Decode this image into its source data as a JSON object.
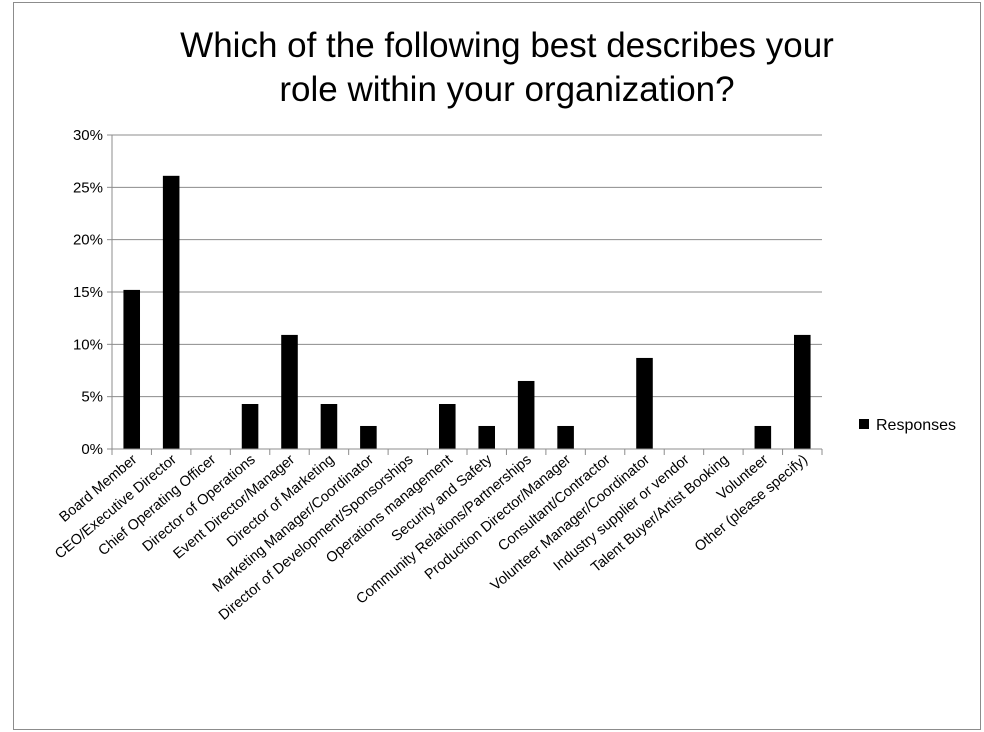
{
  "chart_data": {
    "type": "bar",
    "title_lines": [
      "Which of the following best describes your",
      "role within your organization?"
    ],
    "categories": [
      "Board Member",
      "CEO/Executive Director",
      "Chief Operating Officer",
      "Director of Operations",
      "Event Director/Manager",
      "Director of Marketing",
      "Marketing Manager/Coordinator",
      "Director of Development/Sponsorships",
      "Operations management",
      "Security and Safety",
      "Community Relations/Partnerships",
      "Production Director/Manager",
      "Consultant/Contractor",
      "Volunteer Manager/Coordinator",
      "Industry supplier or vendor",
      "Talent Buyer/Artist Booking",
      "Volunteer",
      "Other (please specify)"
    ],
    "series": [
      {
        "name": "Responses",
        "values": [
          15.2,
          26.1,
          0,
          4.3,
          10.9,
          4.3,
          2.2,
          0,
          4.3,
          2.2,
          6.5,
          2.2,
          0,
          8.7,
          0,
          0,
          2.2,
          10.9
        ]
      }
    ],
    "ylim": [
      0,
      30
    ],
    "yticks": [
      0,
      5,
      10,
      15,
      20,
      25,
      30
    ],
    "ytick_labels": [
      "0%",
      "5%",
      "10%",
      "15%",
      "20%",
      "25%",
      "30%"
    ],
    "grid": true,
    "legend_position": "right",
    "bar_color": "#000000"
  }
}
